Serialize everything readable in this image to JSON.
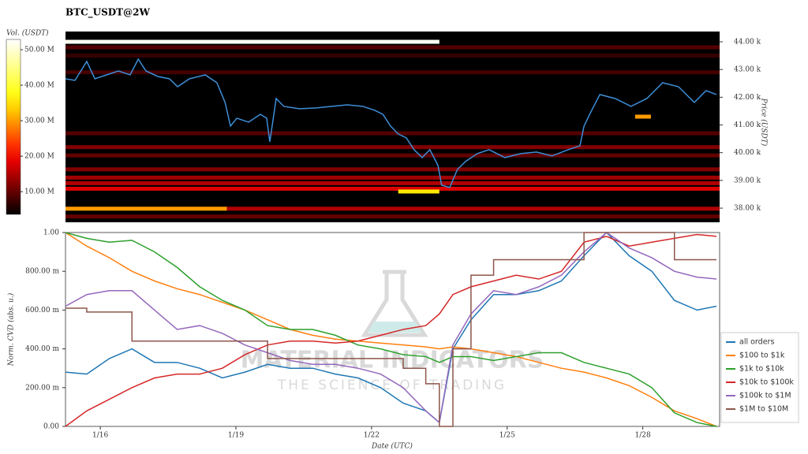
{
  "chart_data": [
    {
      "type": "heatmap",
      "title": "BTC_USDT@2W",
      "ylabel": "Price (USDT)",
      "xlim": [
        15.23,
        29.7
      ],
      "ylim": [
        37490,
        44370
      ],
      "yticks": [
        {
          "value": 38000,
          "label": "38.00 k"
        },
        {
          "value": 39000,
          "label": "39.00 k"
        },
        {
          "value": 40000,
          "label": "40.00 k"
        },
        {
          "value": 41000,
          "label": "41.00 k"
        },
        {
          "value": 42000,
          "label": "42.00 k"
        },
        {
          "value": 43000,
          "label": "43.00 k"
        },
        {
          "value": 44000,
          "label": "44.00 k"
        }
      ],
      "colorbar": {
        "label": "Vol. (USDT)",
        "lim": [
          3600000,
          52900000
        ],
        "ticks": [
          {
            "value": 10000000,
            "label": "10.00 M"
          },
          {
            "value": 20000000,
            "label": "20.00 M"
          },
          {
            "value": 30000000,
            "label": "30.00 M"
          },
          {
            "value": 40000000,
            "label": "40.00 M"
          },
          {
            "value": 50000000,
            "label": "50.00 M"
          }
        ]
      },
      "bands": [
        {
          "price": 43800,
          "x0": 15.23,
          "x1": 29.7,
          "volume": 9000000
        },
        {
          "price": 43500,
          "x0": 15.23,
          "x1": 29.7,
          "volume": 7000000
        },
        {
          "price": 42900,
          "x0": 15.23,
          "x1": 29.7,
          "volume": 8000000
        },
        {
          "price": 40700,
          "x0": 15.23,
          "x1": 29.7,
          "volume": 9000000
        },
        {
          "price": 40200,
          "x0": 15.23,
          "x1": 29.7,
          "volume": 12000000
        },
        {
          "price": 39900,
          "x0": 15.23,
          "x1": 29.7,
          "volume": 10000000
        },
        {
          "price": 39400,
          "x0": 15.23,
          "x1": 29.7,
          "volume": 12000000
        },
        {
          "price": 39100,
          "x0": 15.23,
          "x1": 29.7,
          "volume": 14000000
        },
        {
          "price": 38900,
          "x0": 15.23,
          "x1": 29.7,
          "volume": 15000000
        },
        {
          "price": 38700,
          "x0": 15.23,
          "x1": 29.7,
          "volume": 18000000
        },
        {
          "price": 38600,
          "x0": 22.59,
          "x1": 23.5,
          "volume": 35000000
        },
        {
          "price": 37980,
          "x0": 15.23,
          "x1": 18.8,
          "volume": 30000000
        },
        {
          "price": 37980,
          "x0": 18.8,
          "x1": 29.7,
          "volume": 15000000
        },
        {
          "price": 37700,
          "x0": 15.23,
          "x1": 29.7,
          "volume": 10000000
        },
        {
          "price": 41300,
          "x0": 27.83,
          "x1": 28.18,
          "volume": 30000000
        },
        {
          "price": 44000,
          "x0": 15.23,
          "x1": 23.5,
          "volume": 52000000
        }
      ],
      "line": {
        "color": "#3d8fd8",
        "x": [
          15.23,
          15.44,
          15.7,
          15.88,
          16.14,
          16.4,
          16.66,
          16.84,
          17.01,
          17.27,
          17.53,
          17.71,
          17.97,
          18.32,
          18.58,
          18.76,
          18.88,
          19.02,
          19.28,
          19.54,
          19.68,
          19.75,
          19.89,
          20.06,
          20.41,
          20.76,
          21.11,
          21.46,
          21.81,
          22.07,
          22.25,
          22.42,
          22.59,
          22.77,
          22.94,
          23.12,
          23.29,
          23.47,
          23.55,
          23.73,
          23.9,
          24.08,
          24.34,
          24.6,
          24.95,
          25.3,
          25.65,
          25.99,
          26.35,
          26.61,
          26.7,
          26.87,
          27.05,
          27.39,
          27.74,
          28.09,
          28.44,
          28.79,
          29.14,
          29.4,
          29.63
        ],
        "values": [
          42665,
          42608,
          43290,
          42665,
          42807,
          42949,
          42807,
          43375,
          42949,
          42750,
          42665,
          42380,
          42665,
          42807,
          42523,
          41812,
          40960,
          41244,
          41102,
          41386,
          41244,
          40392,
          41954,
          41670,
          41585,
          41614,
          41670,
          41727,
          41670,
          41528,
          41386,
          40960,
          40676,
          40534,
          40108,
          39824,
          40108,
          39540,
          38830,
          38744,
          39398,
          39682,
          39966,
          40108,
          39824,
          39966,
          40023,
          39881,
          40108,
          40250,
          40960,
          41528,
          42097,
          41954,
          41670,
          41954,
          42523,
          42380,
          41812,
          42239,
          42097
        ]
      }
    },
    {
      "type": "line",
      "xlabel": "Date (UTC)",
      "ylabel": "Norm. CVD (abs. u.)",
      "legend": "lower right",
      "xlim": [
        15.23,
        29.7
      ],
      "ylim": [
        0,
        1
      ],
      "xticks": [
        {
          "value": 16,
          "label": "1/16"
        },
        {
          "value": 19,
          "label": "1/19"
        },
        {
          "value": 22,
          "label": "1/22"
        },
        {
          "value": 25,
          "label": "1/25"
        },
        {
          "value": 28,
          "label": "1/28"
        }
      ],
      "yticks": [
        {
          "value": 0,
          "label": "0.00"
        },
        {
          "value": 0.2,
          "label": "200.00 m"
        },
        {
          "value": 0.4,
          "label": "400.00 m"
        },
        {
          "value": 0.6,
          "label": "600.00 m"
        },
        {
          "value": 0.8,
          "label": "800.00 m"
        },
        {
          "value": 1,
          "label": "1.00"
        }
      ],
      "x": [
        15.23,
        15.7,
        16.2,
        16.7,
        17.2,
        17.7,
        18.2,
        18.7,
        19.2,
        19.7,
        20.2,
        20.7,
        21.2,
        21.7,
        22.2,
        22.7,
        23.2,
        23.5,
        23.8,
        24.2,
        24.7,
        25.2,
        25.7,
        26.2,
        26.7,
        27.2,
        27.7,
        28.2,
        28.7,
        29.2,
        29.63
      ],
      "series": [
        {
          "name": "all orders",
          "color": "#1f77b4",
          "values": [
            0.28,
            0.27,
            0.35,
            0.4,
            0.33,
            0.33,
            0.3,
            0.25,
            0.28,
            0.32,
            0.3,
            0.3,
            0.27,
            0.25,
            0.2,
            0.12,
            0.08,
            0.02,
            0.4,
            0.55,
            0.68,
            0.68,
            0.7,
            0.75,
            0.88,
            1.0,
            0.88,
            0.8,
            0.65,
            0.6,
            0.62
          ]
        },
        {
          "name": "$100 to $1k",
          "color": "#ff7f0e",
          "values": [
            1.0,
            0.93,
            0.87,
            0.8,
            0.75,
            0.71,
            0.68,
            0.64,
            0.6,
            0.55,
            0.5,
            0.47,
            0.45,
            0.44,
            0.43,
            0.42,
            0.41,
            0.4,
            0.41,
            0.4,
            0.38,
            0.36,
            0.33,
            0.3,
            0.28,
            0.25,
            0.21,
            0.15,
            0.08,
            0.04,
            0.0
          ]
        },
        {
          "name": "$1k to $10k",
          "color": "#2ca02c",
          "values": [
            1.0,
            0.97,
            0.95,
            0.96,
            0.9,
            0.82,
            0.72,
            0.65,
            0.6,
            0.52,
            0.5,
            0.5,
            0.47,
            0.42,
            0.4,
            0.37,
            0.36,
            0.33,
            0.36,
            0.36,
            0.34,
            0.36,
            0.38,
            0.38,
            0.33,
            0.3,
            0.27,
            0.2,
            0.07,
            0.02,
            0.0
          ]
        },
        {
          "name": "$10k to $100k",
          "color": "#d62728",
          "values": [
            0.0,
            0.08,
            0.14,
            0.2,
            0.25,
            0.27,
            0.27,
            0.3,
            0.37,
            0.42,
            0.44,
            0.44,
            0.43,
            0.44,
            0.47,
            0.5,
            0.52,
            0.58,
            0.68,
            0.72,
            0.75,
            0.78,
            0.76,
            0.8,
            0.95,
            0.98,
            0.93,
            0.95,
            0.97,
            0.99,
            0.98
          ]
        },
        {
          "name": "$100k to $1M",
          "color": "#9467bd",
          "values": [
            0.62,
            0.68,
            0.7,
            0.7,
            0.6,
            0.5,
            0.52,
            0.48,
            0.42,
            0.38,
            0.34,
            0.32,
            0.32,
            0.3,
            0.27,
            0.2,
            0.08,
            0.02,
            0.42,
            0.58,
            0.7,
            0.68,
            0.72,
            0.78,
            0.9,
            1.0,
            0.92,
            0.87,
            0.8,
            0.77,
            0.76
          ]
        },
        {
          "name": "$1M to $10M",
          "color": "#8c564b",
          "drawstyle": "steps-post",
          "values": [
            0.61,
            0.59,
            0.59,
            0.44,
            0.44,
            0.44,
            0.44,
            0.44,
            0.44,
            0.35,
            0.35,
            0.35,
            0.35,
            0.35,
            0.35,
            0.3,
            0.22,
            0.0,
            0.4,
            0.78,
            0.86,
            0.86,
            0.86,
            0.86,
            1.0,
            1.0,
            1.0,
            1.0,
            0.86,
            0.86,
            0.86
          ]
        }
      ]
    }
  ],
  "watermark": {
    "title": "MATERIAL INDICATORS",
    "subtitle": "THE SCIENCE OF TRADING"
  }
}
